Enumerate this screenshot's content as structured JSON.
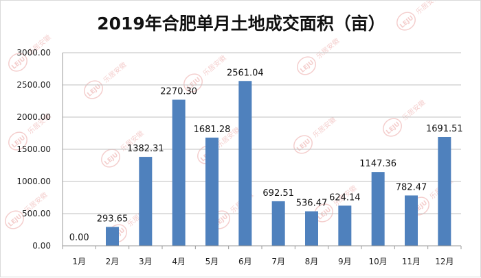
{
  "chart_data": {
    "type": "bar",
    "title": "2019年合肥单月土地成交面积（亩）",
    "categories": [
      "1月",
      "2月",
      "3月",
      "4月",
      "5月",
      "6月",
      "7月",
      "8月",
      "9月",
      "10月",
      "11月",
      "12月"
    ],
    "values": [
      0.0,
      293.65,
      1382.31,
      2270.3,
      1681.28,
      2561.04,
      692.51,
      536.47,
      624.14,
      1147.36,
      782.47,
      1691.51
    ],
    "data_labels": [
      "0.00",
      "293.65",
      "1382.31",
      "2270.30",
      "1681.28",
      "2561.04",
      "692.51",
      "536.47",
      "624.14",
      "1147.36",
      "782.47",
      "1691.51"
    ],
    "y_ticks": [
      "0.00",
      "500.00",
      "1000.00",
      "1500.00",
      "2000.00",
      "2500.00",
      "3000.00"
    ],
    "ylim": [
      0,
      3000
    ],
    "grid": true,
    "legend": "none",
    "bar_color": "#4f81bd",
    "watermark_text": "乐居安徽",
    "watermark_logo": "LEJU"
  }
}
